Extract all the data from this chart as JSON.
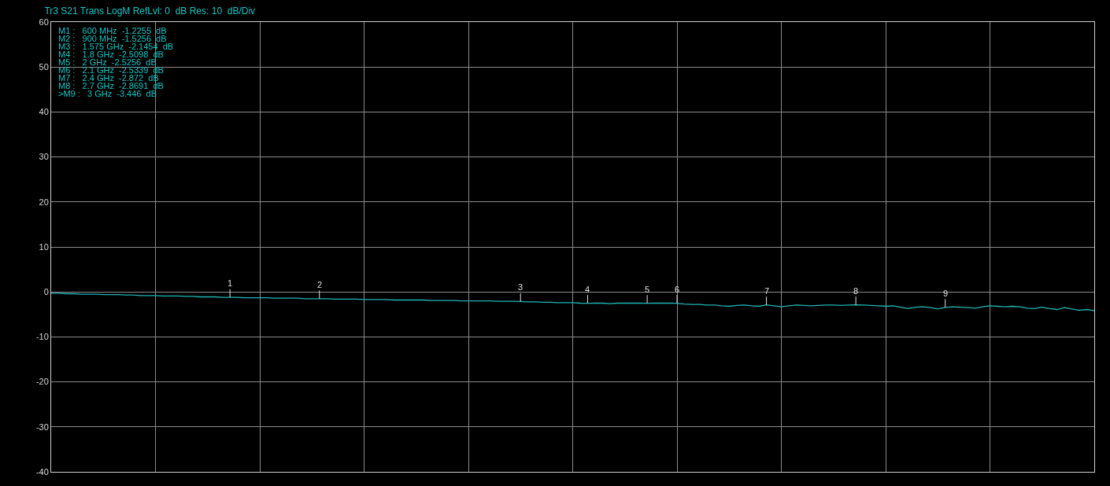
{
  "chart_data": {
    "type": "line",
    "title": "Tr3 S21 Trans LogM RefLvl: 0  dB Res: 10  dB/Div",
    "categories": [
      null,
      null,
      null,
      null,
      null,
      null,
      null,
      null,
      null,
      null,
      null,
      null,
      null,
      null,
      null,
      null,
      null,
      null,
      null,
      null,
      null,
      null,
      null,
      null,
      null,
      null,
      null,
      null,
      null,
      null,
      null,
      null,
      null,
      null,
      null,
      null,
      null,
      null,
      null,
      null,
      null,
      null,
      null,
      null,
      null,
      null,
      null,
      null,
      null,
      null,
      null,
      null,
      null,
      null,
      null,
      null,
      null,
      null,
      null,
      null,
      null,
      null,
      null,
      null,
      null,
      null,
      null,
      null,
      null,
      null,
      null,
      null,
      null,
      null,
      null,
      null,
      null,
      null,
      null,
      null,
      null,
      null,
      null,
      null,
      null,
      null,
      null,
      null,
      null,
      null,
      null,
      null,
      null,
      null,
      null,
      null,
      null,
      null,
      null,
      null,
      null,
      null,
      null,
      null,
      null,
      null,
      null,
      null,
      null,
      null,
      null,
      null,
      null,
      null,
      null,
      null,
      null,
      null,
      null,
      null,
      null,
      null,
      null,
      null,
      null,
      null,
      null,
      null,
      null,
      null,
      null,
      null,
      null,
      null,
      null,
      null,
      null,
      null,
      null,
      null,
      null
    ],
    "series": [
      {
        "color": "#1fb5b5",
        "values": [
          -0.3,
          -0.3,
          -0.4,
          -0.4,
          -0.5,
          -0.5,
          -0.5,
          -0.6,
          -0.6,
          -0.6,
          -0.7,
          -0.7,
          -0.8,
          -0.8,
          -0.8,
          -0.9,
          -0.9,
          -0.9,
          -1.0,
          -1.0,
          -1.1,
          -1.1,
          -1.1,
          -1.2,
          -1.2255,
          -1.2,
          -1.3,
          -1.3,
          -1.3,
          -1.3,
          -1.4,
          -1.4,
          -1.4,
          -1.4,
          -1.5,
          -1.5,
          -1.5256,
          -1.5,
          -1.6,
          -1.6,
          -1.6,
          -1.6,
          -1.7,
          -1.7,
          -1.7,
          -1.7,
          -1.8,
          -1.8,
          -1.8,
          -1.8,
          -1.8,
          -1.9,
          -1.9,
          -1.9,
          -1.9,
          -2.0,
          -2.0,
          -2.0,
          -2.0,
          -2.0,
          -2.1,
          -2.1,
          -2.1,
          -2.1454,
          -2.2,
          -2.2,
          -2.3,
          -2.3,
          -2.4,
          -2.4,
          -2.4,
          -2.5,
          -2.5098,
          -2.5,
          -2.5,
          -2.6,
          -2.5,
          -2.5,
          -2.5,
          -2.5,
          -2.5256,
          -2.5,
          -2.5,
          -2.5,
          -2.5339,
          -2.7,
          -2.8,
          -2.8,
          -2.9,
          -2.9,
          -3.1,
          -3.2,
          -3.0,
          -2.9,
          -3.1,
          -3.2,
          -2.872,
          -3.1,
          -3.3,
          -3.1,
          -2.9,
          -3.0,
          -3.1,
          -3.0,
          -2.9,
          -2.9,
          -3.0,
          -2.9,
          -2.8691,
          -2.9,
          -3.0,
          -3.1,
          -3.2,
          -3.1,
          -3.4,
          -3.7,
          -3.4,
          -3.3,
          -3.5,
          -3.8,
          -3.446,
          -3.3,
          -3.4,
          -3.5,
          -3.6,
          -3.3,
          -3.1,
          -3.2,
          -3.3,
          -3.2,
          -3.3,
          -3.6,
          -3.7,
          -3.4,
          -3.7,
          -3.9,
          -3.5,
          -3.8,
          -4.1,
          -3.9,
          -4.2
        ]
      }
    ],
    "ylim": [
      -40,
      60
    ],
    "yticks": [
      -40,
      -30,
      -20,
      -10,
      0,
      10,
      20,
      30,
      40,
      50,
      60
    ],
    "tick_labels": "y",
    "grid": true,
    "marker": "none",
    "line_style": "solid",
    "annotations": [
      "M1 :   600 MHz  -1.2255  dB",
      "M2 :   900 MHz  -1.5256  dB",
      "M3 :   1.575 GHz  -2.1454  dB",
      "M4 :   1.8 GHz  -2.5098  dB",
      "M5 :   2 GHz  -2.5256  dB",
      "M6 :   2.1 GHz  -2.5339  dB",
      "M7 :   2.4 GHz  -2.872  dB",
      "M8 :   2.7 GHz  -2.8691  dB",
      ">M9 :   3 GHz  -3.446  dB",
      {
        "text": "1",
        "y": -1.2255
      },
      {
        "text": "2",
        "y": -1.5256
      },
      {
        "text": "3",
        "y": -2.1454
      },
      {
        "text": "4",
        "y": -2.5098
      },
      {
        "text": "5",
        "y": -2.5256
      },
      {
        "text": "6",
        "y": -2.5339
      },
      {
        "text": "7",
        "y": -2.872
      },
      {
        "text": "8",
        "y": -2.8691
      },
      {
        "text": "9",
        "y": -3.446
      }
    ]
  }
}
